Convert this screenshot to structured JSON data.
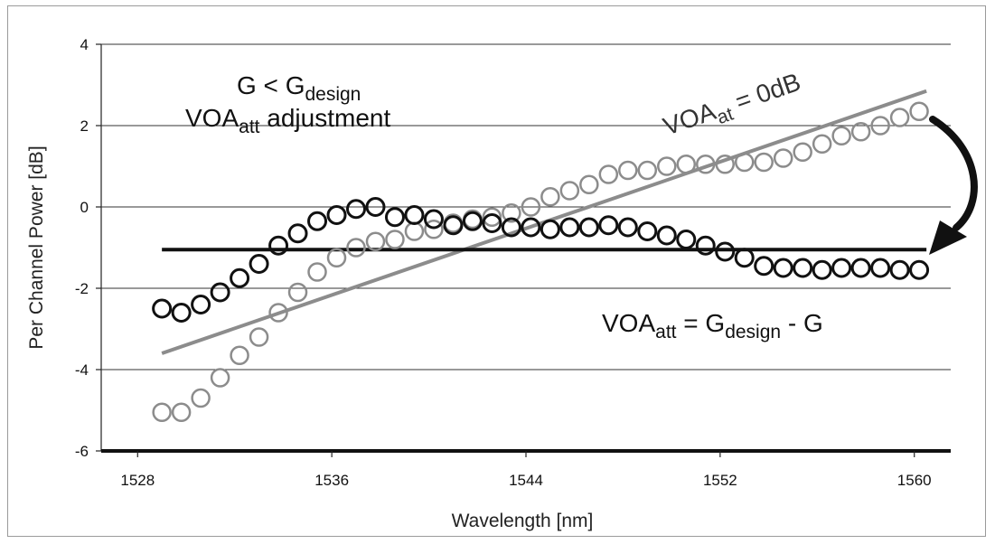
{
  "chart_data": {
    "type": "scatter",
    "xlabel": "Wavelength [nm]",
    "ylabel": "Per Channel Power [dB]",
    "xlim": [
      1526.5,
      1561.5
    ],
    "ylim": [
      -6,
      4
    ],
    "x_ticks": [
      1528,
      1536,
      1544,
      1552,
      1560
    ],
    "y_ticks": [
      4,
      2,
      0,
      -2,
      -4,
      -6
    ],
    "x_tick_labels": [
      "1528",
      "1536",
      "1544",
      "1552",
      "1560"
    ],
    "y_tick_labels": [
      "4",
      "2",
      "0",
      "-2",
      "-4",
      "-6"
    ],
    "grid": "horizontal",
    "x": [
      1529.0,
      1529.8,
      1530.6,
      1531.4,
      1532.2,
      1533.0,
      1533.8,
      1534.6,
      1535.4,
      1536.2,
      1537.0,
      1537.8,
      1538.6,
      1539.4,
      1540.2,
      1541.0,
      1541.8,
      1542.6,
      1543.4,
      1544.2,
      1545.0,
      1545.8,
      1546.6,
      1547.4,
      1548.2,
      1549.0,
      1549.8,
      1550.6,
      1551.4,
      1552.2,
      1553.0,
      1553.8,
      1554.6,
      1555.4,
      1556.2,
      1557.0,
      1557.8,
      1558.6,
      1559.4,
      1560.2
    ],
    "series": [
      {
        "values": [
          -5.05,
          -5.05,
          -4.7,
          -4.2,
          -3.65,
          -3.2,
          -2.6,
          -2.1,
          -1.6,
          -1.25,
          -1.0,
          -0.85,
          -0.8,
          -0.6,
          -0.55,
          -0.4,
          -0.3,
          -0.25,
          -0.15,
          0.0,
          0.25,
          0.4,
          0.55,
          0.8,
          0.9,
          0.9,
          1.0,
          1.05,
          1.05,
          1.05,
          1.1,
          1.1,
          1.2,
          1.35,
          1.55,
          1.75,
          1.85,
          2.0,
          2.2,
          2.35
        ],
        "color": "#8c8c8c",
        "marker": "open-circle"
      },
      {
        "values": [
          -2.5,
          -2.6,
          -2.4,
          -2.1,
          -1.75,
          -1.4,
          -0.95,
          -0.65,
          -0.35,
          -0.2,
          -0.05,
          0.0,
          -0.25,
          -0.2,
          -0.3,
          -0.45,
          -0.35,
          -0.4,
          -0.5,
          -0.5,
          -0.55,
          -0.5,
          -0.5,
          -0.45,
          -0.5,
          -0.6,
          -0.7,
          -0.8,
          -0.95,
          -1.1,
          -1.25,
          -1.45,
          -1.5,
          -1.5,
          -1.55,
          -1.5,
          -1.5,
          -1.5,
          -1.55,
          -1.55
        ],
        "color": "#111111",
        "marker": "open-circle"
      }
    ],
    "lines": [
      {
        "x": [
          1529.0,
          1560.5
        ],
        "y": [
          -3.6,
          2.85
        ],
        "color": "#8c8c8c"
      },
      {
        "x": [
          1529.0,
          1560.5
        ],
        "y": [
          -1.05,
          -1.05
        ],
        "color": "#111111"
      }
    ],
    "annotations": {
      "gain_cond": {
        "main": "G < G",
        "sub": "design"
      },
      "voa_adjust": {
        "main": "VOA",
        "sub": "att",
        "rest": " adjustment"
      },
      "voa_zero": {
        "main": "VOA",
        "sub": "at",
        "rest": "  = 0dB"
      },
      "voa_formula": {
        "main": "VOA",
        "sub1": "att",
        "mid": " = G",
        "sub2": "design",
        "rest": "  - G"
      }
    }
  }
}
